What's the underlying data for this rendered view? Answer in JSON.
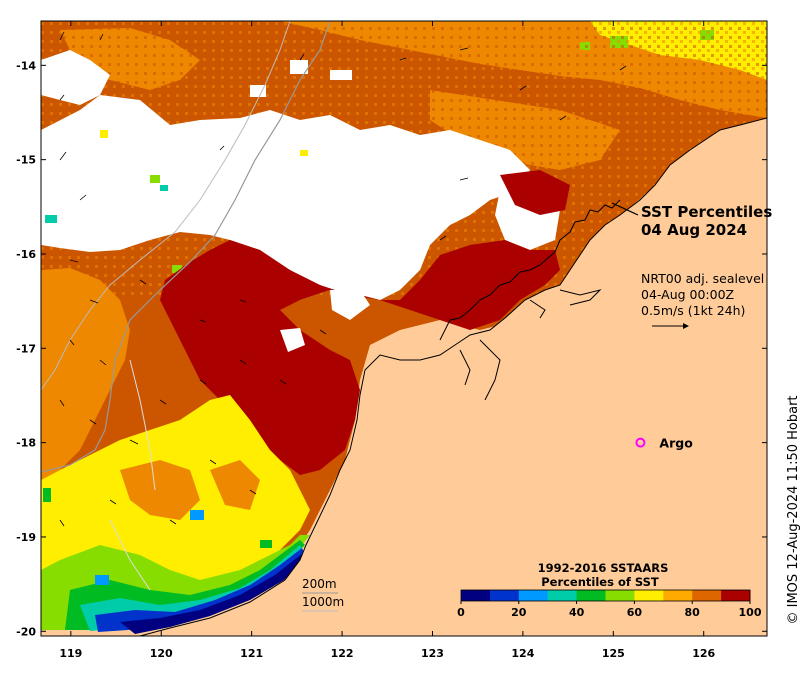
{
  "map": {
    "title_line1": "SST Percentiles",
    "title_line2": "04 Aug 2024",
    "current_info": [
      "NRT00 adj. sealevel",
      "04-Aug 00:00Z",
      "0.5m/s (1kt 24h)"
    ],
    "argo_label": "Argo",
    "contour_labels": [
      "200m",
      "1000m"
    ],
    "credit": "© IMOS 12-Aug-2024 11:50 Hobart",
    "x_ticks": [
      "119",
      "120",
      "121",
      "122",
      "123",
      "124",
      "125",
      "126"
    ],
    "y_ticks": [
      "-14",
      "-15",
      "-16",
      "-17",
      "-18",
      "-19",
      "-20"
    ],
    "extent": {
      "lon": [
        118.67,
        126.7
      ],
      "lat": [
        -20.05,
        -13.53
      ]
    },
    "argo_float": {
      "lon": 125.3,
      "lat": -18.0
    }
  },
  "colorbar": {
    "title_line1": "1992-2016 SSTAARS",
    "title_line2": "Percentiles of SST",
    "tick_labels": [
      "0",
      "20",
      "40",
      "60",
      "80",
      "100"
    ],
    "colors": [
      "#000080",
      "#0033cc",
      "#0099ff",
      "#00ccaa",
      "#00bb22",
      "#88dd00",
      "#ffee00",
      "#ffaa00",
      "#dd6600",
      "#aa0000"
    ]
  },
  "colors": {
    "land": "#ffcc99",
    "cloud": "#ffffff",
    "p100": "#aa0000",
    "p90": "#cc5500",
    "p80": "#ee8800",
    "p70": "#ffaa00",
    "p60": "#ffee00",
    "argo": "#ff00ff"
  }
}
